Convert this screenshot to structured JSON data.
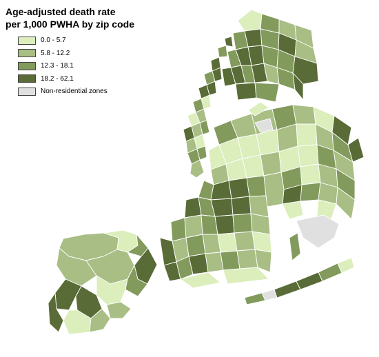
{
  "title": {
    "line1": "Age-adjusted death rate",
    "line2": "per 1,000 PWHA by zip code"
  },
  "colors": {
    "c1": "#dbeebb",
    "c2": "#a8be84",
    "c3": "#829a5c",
    "c4": "#596b36",
    "non_residential": "#e0e0e0"
  },
  "legend": [
    {
      "label": "0.0 - 5.7",
      "color": "#dbeebb"
    },
    {
      "label": "5.8 - 12.2",
      "color": "#a8be84"
    },
    {
      "label": "12.3 - 18.1",
      "color": "#829a5c"
    },
    {
      "label": "18.2 - 62.1",
      "color": "#596b36"
    },
    {
      "label": "Non-residential zones",
      "color": "#e0e0e0"
    }
  ]
}
